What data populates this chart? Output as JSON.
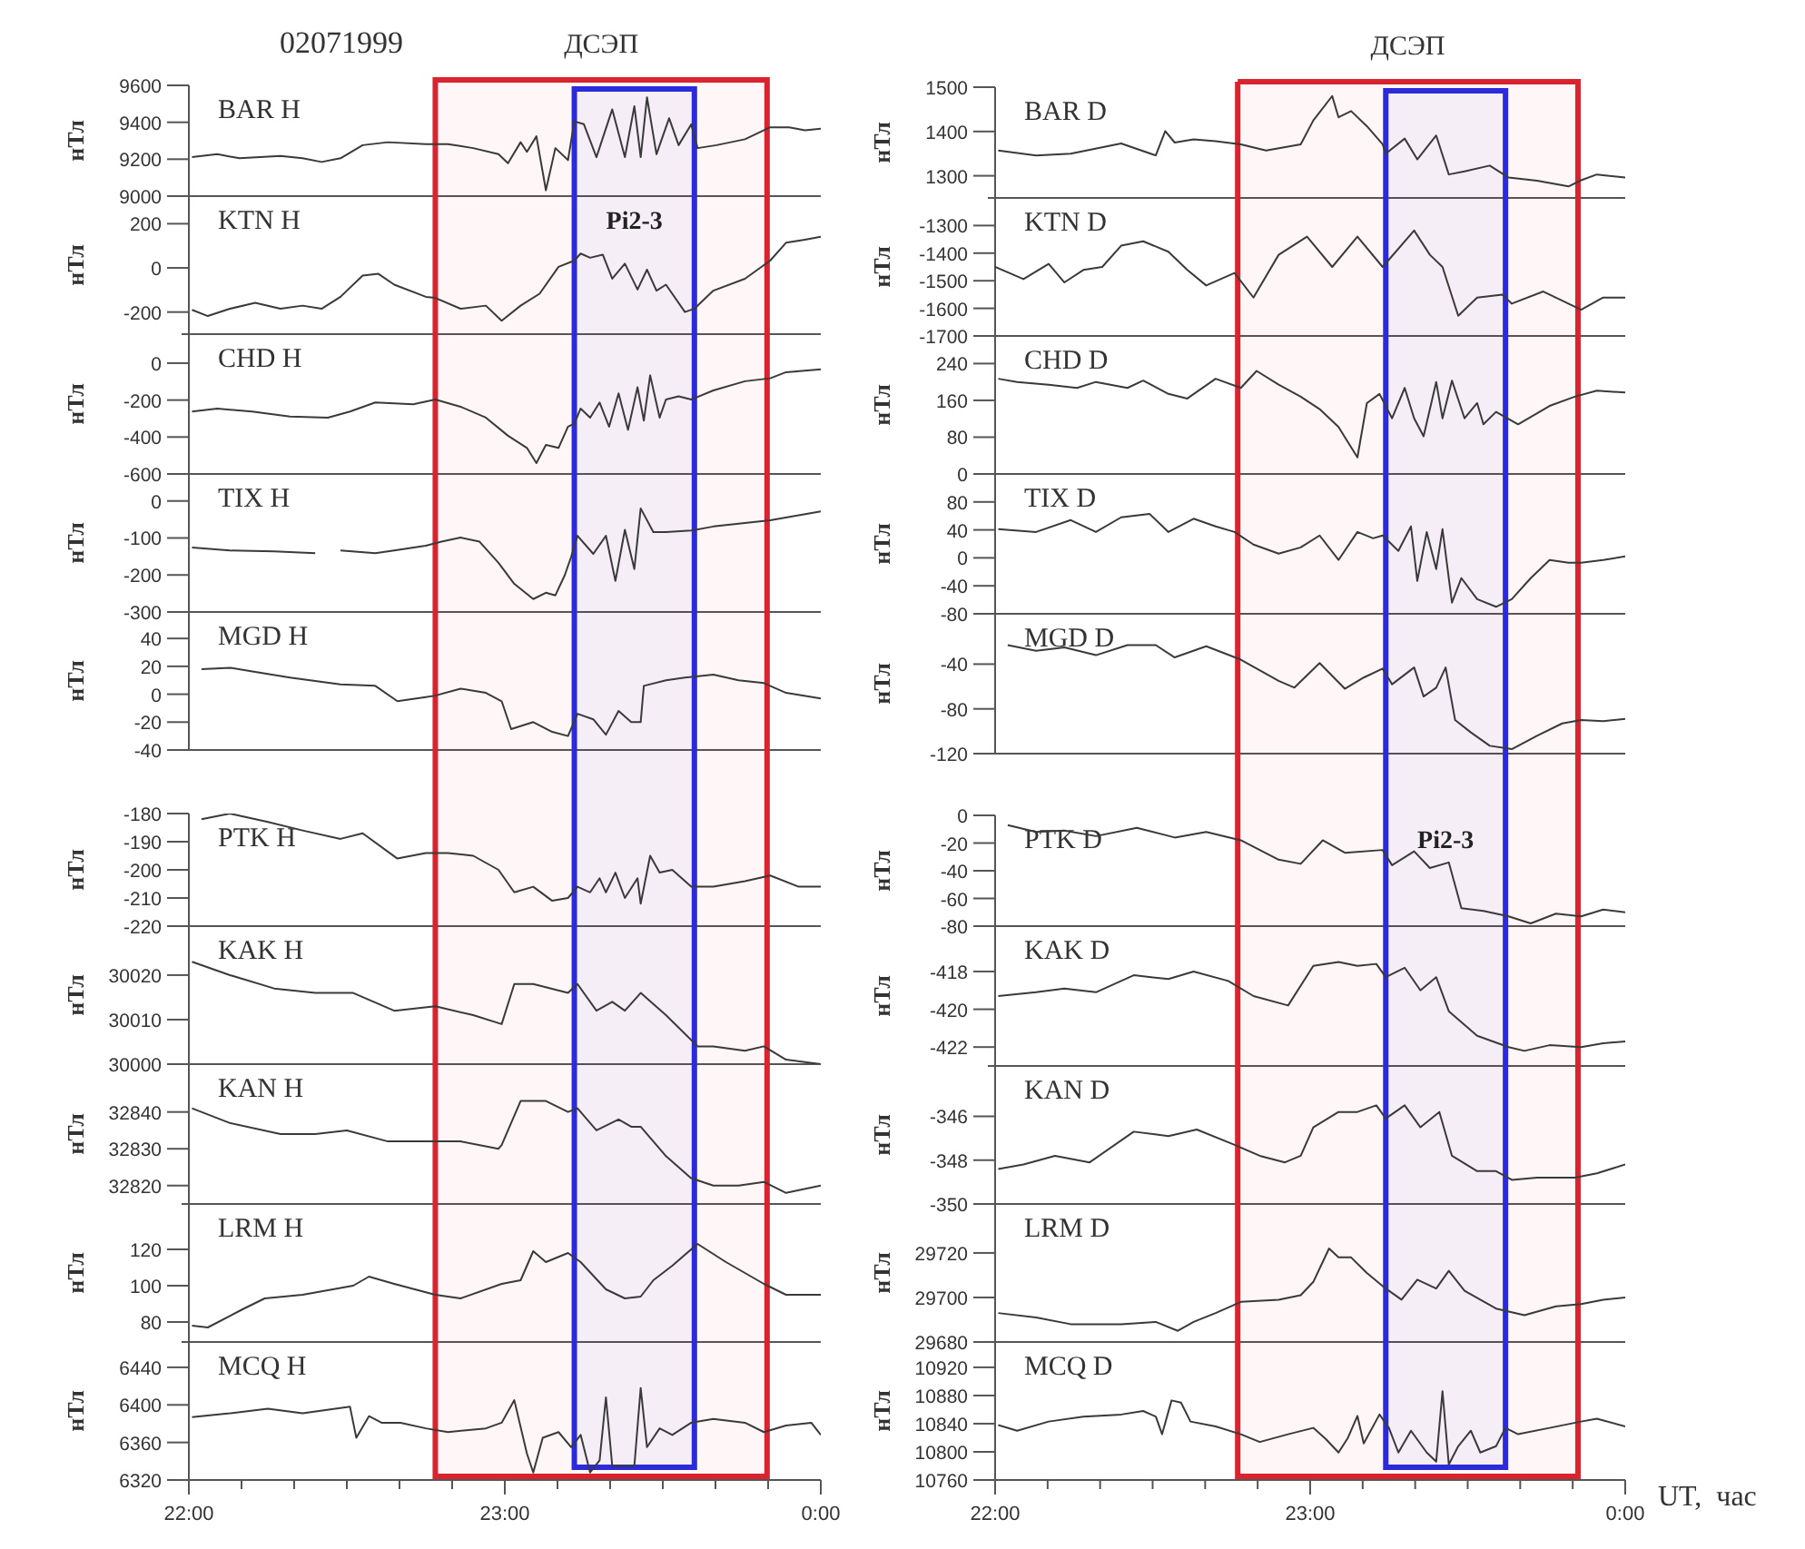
{
  "chart_data": [
    {
      "type": "line",
      "title": "BAR H",
      "ylabel": "нТл",
      "annotations": [
        "02071999"
      ],
      "color": "#3a3a3a",
      "xlim": [
        22,
        24
      ],
      "ylim": [
        9000,
        9600
      ],
      "yticks": [
        9000,
        9200,
        9400,
        9600
      ],
      "tick_labels": "y",
      "bands": [
        {
          "axis": "x",
          "from": 22.78,
          "to": 23.83,
          "label": "ДСЭП",
          "color": "#d9232e"
        },
        {
          "axis": "x",
          "from": 23.22,
          "to": 23.6,
          "color": "#2b2bd9"
        }
      ],
      "x": [
        22.01,
        22.09,
        22.16,
        22.29,
        22.36,
        22.42,
        22.48,
        22.55,
        22.63,
        22.75,
        22.82,
        22.9,
        22.98,
        23.01,
        23.05,
        23.07,
        23.1,
        23.13,
        23.16,
        23.2,
        23.22,
        23.25,
        23.29,
        23.34,
        23.38,
        23.41,
        23.43,
        23.45,
        23.48,
        23.52,
        23.55,
        23.59,
        23.61,
        23.67,
        23.76,
        23.84,
        23.9,
        23.95,
        24
      ],
      "values": [
        9211,
        9227,
        9205,
        9218,
        9205,
        9185,
        9205,
        9276,
        9292,
        9282,
        9282,
        9260,
        9227,
        9178,
        9292,
        9240,
        9324,
        9032,
        9260,
        9195,
        9405,
        9390,
        9211,
        9470,
        9211,
        9487,
        9211,
        9535,
        9227,
        9422,
        9276,
        9389,
        9260,
        9276,
        9308,
        9373,
        9373,
        9357,
        9365
      ]
    },
    {
      "type": "line",
      "title": "KTN H",
      "ylabel": "нТл",
      "color": "#3a3a3a",
      "xlim": [
        22,
        24
      ],
      "ylim": [
        -300,
        325
      ],
      "yticks": [
        -200,
        0,
        200
      ],
      "tick_labels": "y",
      "bands": [
        {
          "axis": "x",
          "from": 22.78,
          "to": 23.83,
          "color": "#d9232e"
        },
        {
          "axis": "x",
          "from": 23.22,
          "to": 23.6,
          "label": "Pi2-3",
          "color": "#2b2bd9"
        }
      ],
      "x": [
        22.01,
        22.06,
        22.13,
        22.21,
        22.29,
        22.36,
        22.42,
        22.48,
        22.55,
        22.6,
        22.65,
        22.75,
        22.78,
        22.86,
        22.94,
        22.99,
        23.05,
        23.11,
        23.17,
        23.22,
        23.24,
        23.27,
        23.31,
        23.34,
        23.38,
        23.42,
        23.45,
        23.48,
        23.51,
        23.57,
        23.6,
        23.66,
        23.76,
        23.84,
        23.89,
        23.95,
        24
      ],
      "values": [
        -190,
        -218,
        -185,
        -158,
        -185,
        -171,
        -185,
        -131,
        -35,
        -27,
        -76,
        -131,
        -136,
        -185,
        -171,
        -239,
        -171,
        -117,
        5,
        33,
        65,
        46,
        60,
        -49,
        19,
        -98,
        -8,
        -103,
        -76,
        -200,
        -185,
        -103,
        -49,
        33,
        114,
        128,
        141
      ]
    },
    {
      "type": "line",
      "title": "CHD H",
      "ylabel": "нТл",
      "color": "#3a3a3a",
      "xlim": [
        22,
        24
      ],
      "ylim": [
        -600,
        157
      ],
      "yticks": [
        -600,
        -400,
        -200,
        0
      ],
      "tick_labels": "y",
      "bands": [
        {
          "axis": "x",
          "from": 22.78,
          "to": 23.83,
          "color": "#d9232e"
        },
        {
          "axis": "x",
          "from": 23.22,
          "to": 23.6,
          "color": "#2b2bd9"
        }
      ],
      "x": [
        22.01,
        22.09,
        22.2,
        22.32,
        22.44,
        22.51,
        22.59,
        22.71,
        22.78,
        22.86,
        22.94,
        23.01,
        23.07,
        23.1,
        23.13,
        23.17,
        23.2,
        23.22,
        23.24,
        23.27,
        23.3,
        23.33,
        23.36,
        23.39,
        23.42,
        23.44,
        23.46,
        23.49,
        23.51,
        23.55,
        23.59,
        23.66,
        23.76,
        23.84,
        23.89,
        24
      ],
      "values": [
        -262,
        -246,
        -262,
        -289,
        -295,
        -262,
        -213,
        -223,
        -197,
        -236,
        -295,
        -393,
        -459,
        -541,
        -443,
        -459,
        -344,
        -328,
        -246,
        -295,
        -213,
        -344,
        -164,
        -361,
        -131,
        -311,
        -66,
        -295,
        -197,
        -180,
        -197,
        -148,
        -98,
        -82,
        -49,
        -33
      ]
    },
    {
      "type": "line",
      "title": "TIX H",
      "ylabel": "нТл",
      "color": "#3a3a3a",
      "xlim": [
        22,
        24
      ],
      "ylim": [
        -300,
        73
      ],
      "yticks": [
        -300,
        -200,
        -100,
        0
      ],
      "tick_labels": "y",
      "bands": [
        {
          "axis": "x",
          "from": 22.78,
          "to": 23.83,
          "color": "#d9232e"
        },
        {
          "axis": "x",
          "from": 23.22,
          "to": 23.6,
          "color": "#2b2bd9"
        }
      ],
      "x": [
        22.01,
        22.13,
        22.27,
        22.4,
        22.44,
        22.48,
        22.59,
        22.65,
        22.75,
        22.8,
        22.86,
        22.92,
        22.98,
        23.03,
        23.09,
        23.13,
        23.16,
        23.19,
        23.21,
        23.23,
        23.28,
        23.32,
        23.35,
        23.38,
        23.41,
        23.43,
        23.47,
        23.51,
        23.59,
        23.66,
        23.84,
        24
      ],
      "values": [
        -126,
        -134,
        -136,
        -141,
        null,
        -134,
        -141,
        -134,
        -121,
        -110,
        -99,
        -110,
        -167,
        -224,
        -265,
        -248,
        -255,
        -200,
        -151,
        -94,
        -143,
        -94,
        -216,
        -78,
        -184,
        -20,
        -84,
        -84,
        -80,
        -69,
        -52,
        -28
      ]
    },
    {
      "type": "line",
      "title": "MGD H",
      "ylabel": "нТл",
      "color": "#3a3a3a",
      "xlim": [
        22,
        24
      ],
      "ylim": [
        -40,
        59
      ],
      "yticks": [
        -40,
        -20,
        0,
        20,
        40
      ],
      "tick_labels": "y",
      "bands": [
        {
          "axis": "x",
          "from": 22.78,
          "to": 23.83,
          "color": "#d9232e"
        },
        {
          "axis": "x",
          "from": 23.22,
          "to": 23.6,
          "color": "#2b2bd9"
        }
      ],
      "x": [
        22.04,
        22.13,
        22.21,
        22.32,
        22.48,
        22.59,
        22.66,
        22.75,
        22.78,
        22.86,
        22.94,
        22.99,
        23.02,
        23.09,
        23.15,
        23.2,
        23.23,
        23.28,
        23.32,
        23.36,
        23.4,
        23.43,
        23.44,
        23.51,
        23.57,
        23.66,
        23.74,
        23.82,
        23.89,
        24
      ],
      "values": [
        18,
        19,
        16,
        12,
        7,
        6,
        -5,
        -2,
        -1,
        4,
        1,
        -5,
        -25,
        -20,
        -27,
        -30,
        -14,
        -18,
        -29,
        -12,
        -20,
        -20,
        6,
        10,
        12,
        14,
        10,
        8,
        1,
        -3
      ]
    },
    {
      "type": "line",
      "title": "PTK H",
      "ylabel": "нТл",
      "color": "#3a3a3a",
      "xlim": [
        22,
        24
      ],
      "ylim": [
        -220,
        -180
      ],
      "yticks": [
        -220,
        -210,
        -200,
        -190,
        -180
      ],
      "tick_labels": "y",
      "bands": [
        {
          "axis": "x",
          "from": 22.78,
          "to": 23.83,
          "color": "#d9232e"
        },
        {
          "axis": "x",
          "from": 23.22,
          "to": 23.6,
          "color": "#2b2bd9"
        }
      ],
      "x": [
        22.04,
        22.13,
        22.25,
        22.36,
        22.48,
        22.55,
        22.66,
        22.75,
        22.82,
        22.9,
        22.98,
        23.03,
        23.09,
        23.15,
        23.2,
        23.23,
        23.27,
        23.3,
        23.32,
        23.35,
        23.38,
        23.42,
        23.43,
        23.46,
        23.49,
        23.53,
        23.59,
        23.66,
        23.76,
        23.84,
        23.93,
        24
      ],
      "values": [
        -182,
        -180,
        -183,
        -186,
        -189,
        -187,
        -196,
        -194,
        -194,
        -195,
        -200,
        -208,
        -206,
        -211,
        -210,
        -206,
        -208,
        -203,
        -208,
        -201,
        -210,
        -203,
        -212,
        -195,
        -201,
        -200,
        -206,
        -206,
        -204,
        -202,
        -206,
        -206
      ]
    },
    {
      "type": "line",
      "title": "KAK H",
      "ylabel": "нТл",
      "color": "#3a3a3a",
      "xlim": [
        22,
        24
      ],
      "ylim": [
        30000,
        30031
      ],
      "yticks": [
        30000,
        30010,
        30020
      ],
      "tick_labels": "y",
      "bands": [
        {
          "axis": "x",
          "from": 22.78,
          "to": 23.83,
          "color": "#d9232e"
        },
        {
          "axis": "x",
          "from": 23.22,
          "to": 23.6,
          "color": "#2b2bd9"
        }
      ],
      "x": [
        22.01,
        22.13,
        22.27,
        22.4,
        22.52,
        22.65,
        22.78,
        22.9,
        22.99,
        23.03,
        23.09,
        23.2,
        23.23,
        23.29,
        23.34,
        23.38,
        23.43,
        23.51,
        23.61,
        23.66,
        23.76,
        23.82,
        23.89,
        24
      ],
      "values": [
        30023,
        30020,
        30017,
        30016,
        30016,
        30012,
        30013,
        30011,
        30009,
        30018,
        30018,
        30016,
        30018,
        30012,
        30014,
        30012,
        30016,
        30011,
        30004,
        30004,
        30003,
        30004,
        30001,
        30000
      ]
    },
    {
      "type": "line",
      "title": "KAN H",
      "ylabel": "нТл",
      "color": "#3a3a3a",
      "xlim": [
        22,
        24
      ],
      "ylim": [
        32815,
        32853
      ],
      "yticks": [
        32820,
        32830,
        32840
      ],
      "tick_labels": "y",
      "bands": [
        {
          "axis": "x",
          "from": 22.78,
          "to": 23.83,
          "color": "#d9232e"
        },
        {
          "axis": "x",
          "from": 23.22,
          "to": 23.6,
          "color": "#2b2bd9"
        }
      ],
      "x": [
        22.01,
        22.13,
        22.29,
        22.4,
        22.5,
        22.63,
        22.75,
        22.86,
        22.98,
        22.99,
        23.05,
        23.13,
        23.2,
        23.23,
        23.29,
        23.36,
        23.4,
        23.43,
        23.51,
        23.59,
        23.66,
        23.74,
        23.82,
        23.89,
        24
      ],
      "values": [
        32841,
        32837,
        32834,
        32834,
        32835,
        32832,
        32832,
        32832,
        32830,
        32831,
        32843,
        32843,
        32840,
        32841,
        32835,
        32838,
        32836,
        32836,
        32828,
        32822,
        32820,
        32820,
        32821,
        32818,
        32820
      ]
    },
    {
      "type": "line",
      "title": "LRM H",
      "ylabel": "нТл",
      "color": "#3a3a3a",
      "xlim": [
        22,
        24
      ],
      "ylim": [
        69,
        145
      ],
      "yticks": [
        80,
        100,
        120
      ],
      "tick_labels": "y",
      "bands": [
        {
          "axis": "x",
          "from": 22.78,
          "to": 23.83,
          "color": "#d9232e"
        },
        {
          "axis": "x",
          "from": 23.22,
          "to": 23.6,
          "color": "#2b2bd9"
        }
      ],
      "x": [
        22.01,
        22.06,
        22.17,
        22.24,
        22.36,
        22.52,
        22.57,
        22.65,
        22.78,
        22.86,
        22.99,
        23.05,
        23.09,
        23.13,
        23.2,
        23.24,
        23.32,
        23.38,
        23.43,
        23.47,
        23.53,
        23.61,
        23.7,
        23.82,
        23.89,
        24
      ],
      "values": [
        78,
        77,
        87,
        93,
        95,
        100,
        105,
        101,
        95,
        93,
        101,
        103,
        119,
        113,
        118,
        113,
        98,
        93,
        94,
        103,
        111,
        123,
        113,
        101,
        95,
        95
      ]
    },
    {
      "type": "line",
      "title": "MCQ H",
      "ylabel": "нТл",
      "color": "#3a3a3a",
      "xlim": [
        22,
        24
      ],
      "ylim": [
        6320,
        6467
      ],
      "yticks": [
        6320,
        6360,
        6400,
        6440
      ],
      "bands": [
        {
          "axis": "x",
          "from": 22.78,
          "to": 23.83,
          "color": "#d9232e"
        },
        {
          "axis": "x",
          "from": 23.22,
          "to": 23.6,
          "color": "#2b2bd9"
        }
      ],
      "xticks": [
        {
          "value": 22,
          "label": "22:00"
        },
        {
          "value": 22.1667,
          "label": null
        },
        {
          "value": 22.3333,
          "label": null
        },
        {
          "value": 22.5,
          "label": null
        },
        {
          "value": 22.6667,
          "label": null
        },
        {
          "value": 22.8333,
          "label": null
        },
        {
          "value": 23,
          "label": "23:00"
        },
        {
          "value": 23.1667,
          "label": null
        },
        {
          "value": 23.3333,
          "label": null
        },
        {
          "value": 23.5,
          "label": null
        },
        {
          "value": 23.6667,
          "label": null
        },
        {
          "value": 23.8333,
          "label": null
        },
        {
          "value": 24,
          "label": "0:00"
        }
      ],
      "x": [
        22.01,
        22.13,
        22.25,
        22.36,
        22.51,
        22.53,
        22.57,
        22.61,
        22.67,
        22.75,
        22.82,
        22.94,
        22.99,
        23.03,
        23.07,
        23.09,
        23.12,
        23.17,
        23.21,
        23.24,
        23.27,
        23.3,
        23.32,
        23.34,
        23.38,
        23.41,
        23.43,
        23.45,
        23.49,
        23.53,
        23.59,
        23.66,
        23.76,
        23.82,
        23.89,
        23.97,
        24
      ],
      "values": [
        6387,
        6391,
        6396,
        6391,
        6398,
        6365,
        6388,
        6381,
        6381,
        6375,
        6371,
        6375,
        6381,
        6405,
        6348,
        6328,
        6365,
        6371,
        6355,
        6368,
        6328,
        6341,
        6408,
        6335,
        6335,
        6335,
        6418,
        6355,
        6375,
        6368,
        6381,
        6385,
        6381,
        6371,
        6378,
        6381,
        6368
      ]
    },
    {
      "type": "line",
      "title": "BAR D",
      "ylabel": "нТл",
      "color": "#3a3a3a",
      "xlim": [
        22,
        24
      ],
      "ylim": [
        1250,
        1500
      ],
      "yticks": [
        1300,
        1400,
        1500
      ],
      "tick_labels": "y",
      "bands": [
        {
          "axis": "x",
          "from": 22.77,
          "to": 23.85,
          "label": "ДСЭП",
          "color": "#d9232e"
        },
        {
          "axis": "x",
          "from": 23.24,
          "to": 23.62,
          "color": "#2b2bd9"
        }
      ],
      "x": [
        22.01,
        22.13,
        22.24,
        22.4,
        22.51,
        22.54,
        22.57,
        22.63,
        22.7,
        22.78,
        22.86,
        22.97,
        23.01,
        23.07,
        23.09,
        23.13,
        23.18,
        23.23,
        23.24,
        23.3,
        23.34,
        23.4,
        23.44,
        23.49,
        23.57,
        23.63,
        23.72,
        23.82,
        23.86,
        23.91,
        24
      ],
      "values": [
        1357,
        1346,
        1350,
        1373,
        1346,
        1401,
        1375,
        1382,
        1378,
        1371,
        1357,
        1371,
        1425,
        1480,
        1432,
        1446,
        1412,
        1371,
        1350,
        1384,
        1337,
        1391,
        1303,
        1310,
        1323,
        1296,
        1289,
        1276,
        1290,
        1303,
        1296
      ]
    },
    {
      "type": "line",
      "title": "KTN D",
      "ylabel": "нТл",
      "color": "#3a3a3a",
      "xlim": [
        22,
        24
      ],
      "ylim": [
        -1700,
        -1200
      ],
      "yticks": [
        -1700,
        -1600,
        -1500,
        -1400,
        -1300
      ],
      "tick_labels": "y",
      "bands": [
        {
          "axis": "x",
          "from": 22.77,
          "to": 23.85,
          "color": "#d9232e"
        },
        {
          "axis": "x",
          "from": 23.24,
          "to": 23.62,
          "color": "#2b2bd9"
        }
      ],
      "x": [
        22,
        22.09,
        22.17,
        22.22,
        22.28,
        22.34,
        22.4,
        22.47,
        22.55,
        22.61,
        22.67,
        22.76,
        22.82,
        22.9,
        22.99,
        23.07,
        23.15,
        23.23,
        23.33,
        23.38,
        23.42,
        23.47,
        23.53,
        23.61,
        23.64,
        23.74,
        23.86,
        23.93,
        24
      ],
      "values": [
        -1450,
        -1494,
        -1439,
        -1506,
        -1461,
        -1450,
        -1373,
        -1357,
        -1395,
        -1461,
        -1517,
        -1472,
        -1561,
        -1406,
        -1340,
        -1450,
        -1340,
        -1450,
        -1318,
        -1406,
        -1450,
        -1627,
        -1561,
        -1550,
        -1583,
        -1539,
        -1605,
        -1561,
        -1561
      ]
    },
    {
      "type": "line",
      "title": "CHD D",
      "ylabel": "нТл",
      "color": "#3a3a3a",
      "xlim": [
        22,
        24
      ],
      "ylim": [
        0,
        300
      ],
      "yticks": [
        0,
        80,
        160,
        240
      ],
      "tick_labels": "y",
      "bands": [
        {
          "axis": "x",
          "from": 22.77,
          "to": 23.85,
          "color": "#d9232e"
        },
        {
          "axis": "x",
          "from": 23.24,
          "to": 23.62,
          "color": "#2b2bd9"
        }
      ],
      "x": [
        22.01,
        22.07,
        22.17,
        22.26,
        22.32,
        22.42,
        22.47,
        22.55,
        22.61,
        22.7,
        22.78,
        22.83,
        22.9,
        22.97,
        23.03,
        23.09,
        23.15,
        23.18,
        23.22,
        23.26,
        23.3,
        23.33,
        23.36,
        23.4,
        23.42,
        23.45,
        23.49,
        23.53,
        23.55,
        23.59,
        23.66,
        23.76,
        23.84,
        23.91,
        24
      ],
      "values": [
        207,
        200,
        194,
        187,
        200,
        187,
        203,
        174,
        164,
        207,
        187,
        224,
        194,
        168,
        141,
        102,
        36,
        154,
        174,
        121,
        187,
        121,
        82,
        200,
        121,
        203,
        121,
        154,
        108,
        135,
        108,
        148,
        168,
        181,
        177
      ]
    },
    {
      "type": "line",
      "title": "TIX D",
      "ylabel": "нТл",
      "color": "#3a3a3a",
      "xlim": [
        22,
        24
      ],
      "ylim": [
        -80,
        120
      ],
      "yticks": [
        -80,
        -40,
        0,
        40,
        80
      ],
      "tick_labels": "y",
      "bands": [
        {
          "axis": "x",
          "from": 22.77,
          "to": 23.85,
          "color": "#d9232e"
        },
        {
          "axis": "x",
          "from": 23.24,
          "to": 23.62,
          "color": "#2b2bd9"
        }
      ],
      "x": [
        22.01,
        22.13,
        22.24,
        22.32,
        22.4,
        22.49,
        22.55,
        22.63,
        22.7,
        22.76,
        22.82,
        22.9,
        22.97,
        23.03,
        23.09,
        23.15,
        23.2,
        23.23,
        23.28,
        23.32,
        23.34,
        23.37,
        23.4,
        23.42,
        23.45,
        23.48,
        23.53,
        23.59,
        23.64,
        23.7,
        23.76,
        23.82,
        23.86,
        23.93,
        24
      ],
      "values": [
        41,
        37,
        54,
        37,
        58,
        63,
        37,
        56,
        45,
        37,
        19,
        6,
        15,
        32,
        -3,
        37,
        28,
        32,
        10,
        45,
        -33,
        37,
        -16,
        41,
        -64,
        -29,
        -59,
        -70,
        -59,
        -29,
        -3,
        -7,
        -7,
        -3,
        2
      ]
    },
    {
      "type": "line",
      "title": "MGD D",
      "ylabel": "нТл",
      "color": "#3a3a3a",
      "xlim": [
        22,
        24
      ],
      "ylim": [
        -120,
        5
      ],
      "yticks": [
        -120,
        -80,
        -40
      ],
      "tick_labels": "y",
      "bands": [
        {
          "axis": "x",
          "from": 22.77,
          "to": 23.85,
          "color": "#d9232e"
        },
        {
          "axis": "x",
          "from": 23.24,
          "to": 23.62,
          "color": "#2b2bd9"
        }
      ],
      "x": [
        22.04,
        22.13,
        22.22,
        22.32,
        22.42,
        22.51,
        22.57,
        22.67,
        22.78,
        22.9,
        22.95,
        23.03,
        23.11,
        23.17,
        23.23,
        23.26,
        23.33,
        23.36,
        23.4,
        23.43,
        23.46,
        23.51,
        23.57,
        23.64,
        23.72,
        23.8,
        23.86,
        23.93,
        24
      ],
      "values": [
        -23,
        -28,
        -25,
        -32,
        -23,
        -23,
        -34,
        -24,
        -36,
        -55,
        -61,
        -39,
        -62,
        -52,
        -44,
        -58,
        -43,
        -69,
        -61,
        -43,
        -90,
        -101,
        -113,
        -116,
        -104,
        -93,
        -90,
        -91,
        -89
      ]
    },
    {
      "type": "line",
      "title": "PTK D",
      "ylabel": "нТл",
      "color": "#3a3a3a",
      "xlim": [
        22,
        24
      ],
      "ylim": [
        -80,
        0
      ],
      "yticks": [
        -80,
        -60,
        -40,
        -20,
        0
      ],
      "tick_labels": "y",
      "bands": [
        {
          "axis": "x",
          "from": 22.77,
          "to": 23.85,
          "color": "#d9232e"
        },
        {
          "axis": "x",
          "from": 23.24,
          "to": 23.62,
          "label": "Pi2-3",
          "color": "#2b2bd9"
        }
      ],
      "x": [
        22.04,
        22.13,
        22.22,
        22.32,
        22.45,
        22.57,
        22.67,
        22.78,
        22.9,
        22.97,
        23.04,
        23.11,
        23.23,
        23.26,
        23.33,
        23.38,
        23.44,
        23.48,
        23.55,
        23.63,
        23.7,
        23.78,
        23.86,
        23.93,
        24
      ],
      "values": [
        -7,
        -12,
        -11,
        -15,
        -9,
        -16,
        -12,
        -18,
        -32,
        -35,
        -18,
        -27,
        -25,
        -36,
        -26,
        -38,
        -34,
        -67,
        -69,
        -73,
        -78,
        -71,
        -73,
        -68,
        -70
      ]
    },
    {
      "type": "line",
      "title": "KAK D",
      "ylabel": "нТл",
      "color": "#3a3a3a",
      "xlim": [
        22,
        24
      ],
      "ylim": [
        -423,
        -415.6
      ],
      "yticks": [
        -422,
        -420,
        -418
      ],
      "tick_labels": "y",
      "bands": [
        {
          "axis": "x",
          "from": 22.77,
          "to": 23.85,
          "color": "#d9232e"
        },
        {
          "axis": "x",
          "from": 23.24,
          "to": 23.62,
          "color": "#2b2bd9"
        }
      ],
      "x": [
        22.01,
        22.13,
        22.22,
        22.32,
        22.44,
        22.55,
        22.63,
        22.74,
        22.82,
        22.93,
        23.01,
        23.09,
        23.15,
        23.21,
        23.24,
        23.3,
        23.35,
        23.4,
        23.44,
        23.53,
        23.63,
        23.68,
        23.76,
        23.86,
        23.93,
        24
      ],
      "values": [
        -419.3,
        -419.1,
        -418.9,
        -419.1,
        -418.2,
        -418.4,
        -418,
        -418.5,
        -419.3,
        -419.8,
        -417.7,
        -417.5,
        -417.7,
        -417.6,
        -418.3,
        -417.8,
        -419,
        -418.3,
        -420.1,
        -421.4,
        -422,
        -422.2,
        -421.9,
        -422,
        -421.8,
        -421.7
      ]
    },
    {
      "type": "line",
      "title": "KAN D",
      "ylabel": "нТл",
      "color": "#3a3a3a",
      "xlim": [
        22,
        24
      ],
      "ylim": [
        -350,
        -343.7
      ],
      "yticks": [
        -350,
        -348,
        -346
      ],
      "tick_labels": "y",
      "bands": [
        {
          "axis": "x",
          "from": 22.77,
          "to": 23.85,
          "color": "#d9232e"
        },
        {
          "axis": "x",
          "from": 23.24,
          "to": 23.62,
          "color": "#2b2bd9"
        }
      ],
      "x": [
        22.01,
        22.09,
        22.19,
        22.3,
        22.44,
        22.55,
        22.64,
        22.76,
        22.84,
        22.92,
        22.97,
        23.01,
        23.09,
        23.15,
        23.21,
        23.24,
        23.3,
        23.35,
        23.41,
        23.45,
        23.53,
        23.59,
        23.64,
        23.72,
        23.84,
        23.91,
        24
      ],
      "values": [
        -348.4,
        -348.2,
        -347.8,
        -348.1,
        -346.7,
        -346.9,
        -346.6,
        -347.3,
        -347.8,
        -348.1,
        -347.8,
        -346.5,
        -345.8,
        -345.8,
        -345.5,
        -346.1,
        -345.5,
        -346.5,
        -345.8,
        -347.8,
        -348.5,
        -348.5,
        -348.9,
        -348.8,
        -348.8,
        -348.6,
        -348.2
      ]
    },
    {
      "type": "line",
      "title": "LRM D",
      "ylabel": "нТл",
      "color": "#3a3a3a",
      "xlim": [
        22,
        24
      ],
      "ylim": [
        29680,
        29742
      ],
      "yticks": [
        29680,
        29700,
        29720
      ],
      "tick_labels": "y",
      "bands": [
        {
          "axis": "x",
          "from": 22.77,
          "to": 23.85,
          "color": "#d9232e"
        },
        {
          "axis": "x",
          "from": 23.24,
          "to": 23.62,
          "color": "#2b2bd9"
        }
      ],
      "x": [
        22.01,
        22.13,
        22.24,
        22.4,
        22.51,
        22.58,
        22.63,
        22.7,
        22.78,
        22.9,
        22.97,
        23.01,
        23.06,
        23.09,
        23.13,
        23.18,
        23.24,
        23.29,
        23.34,
        23.4,
        23.44,
        23.49,
        23.59,
        23.68,
        23.78,
        23.86,
        23.93,
        24
      ],
      "values": [
        29693,
        29691,
        29688,
        29688,
        29689,
        29685,
        29689,
        29693,
        29698,
        29699,
        29701,
        29707,
        29722,
        29718,
        29718,
        29711,
        29704,
        29699,
        29708,
        29704,
        29712,
        29703,
        29695,
        29692,
        29696,
        29697,
        29699,
        29700
      ]
    },
    {
      "type": "line",
      "title": "MCQ D",
      "ylabel": "нТл",
      "xlabel": "UT,  час",
      "color": "#3a3a3a",
      "xlim": [
        22,
        24
      ],
      "ylim": [
        10760,
        10956
      ],
      "yticks": [
        10760,
        10800,
        10840,
        10880,
        10920
      ],
      "bands": [
        {
          "axis": "x",
          "from": 22.77,
          "to": 23.85,
          "color": "#d9232e"
        },
        {
          "axis": "x",
          "from": 23.24,
          "to": 23.62,
          "color": "#2b2bd9"
        }
      ],
      "xticks": [
        {
          "value": 22,
          "label": "22:00"
        },
        {
          "value": 22.1667,
          "label": null
        },
        {
          "value": 22.3333,
          "label": null
        },
        {
          "value": 22.5,
          "label": null
        },
        {
          "value": 22.6667,
          "label": null
        },
        {
          "value": 22.8333,
          "label": null
        },
        {
          "value": 23,
          "label": "23:00"
        },
        {
          "value": 23.1667,
          "label": null
        },
        {
          "value": 23.3333,
          "label": null
        },
        {
          "value": 23.5,
          "label": null
        },
        {
          "value": 23.6667,
          "label": null
        },
        {
          "value": 23.8333,
          "label": null
        },
        {
          "value": 24,
          "label": "0:00"
        }
      ],
      "x": [
        22.01,
        22.07,
        22.17,
        22.28,
        22.4,
        22.47,
        22.51,
        22.53,
        22.56,
        22.59,
        22.62,
        22.7,
        22.78,
        22.84,
        22.93,
        23.01,
        23.05,
        23.09,
        23.12,
        23.15,
        23.17,
        23.22,
        23.25,
        23.28,
        23.32,
        23.37,
        23.4,
        23.42,
        23.44,
        23.47,
        23.51,
        23.54,
        23.59,
        23.62,
        23.66,
        23.76,
        23.86,
        23.91,
        24
      ],
      "values": [
        10838,
        10830,
        10843,
        10850,
        10853,
        10858,
        10850,
        10825,
        10873,
        10870,
        10843,
        10836,
        10825,
        10814,
        10825,
        10834,
        10818,
        10799,
        10820,
        10851,
        10812,
        10853,
        10834,
        10799,
        10830,
        10799,
        10786,
        10886,
        10782,
        10808,
        10830,
        10799,
        10808,
        10834,
        10825,
        10834,
        10843,
        10847,
        10836
      ]
    }
  ]
}
